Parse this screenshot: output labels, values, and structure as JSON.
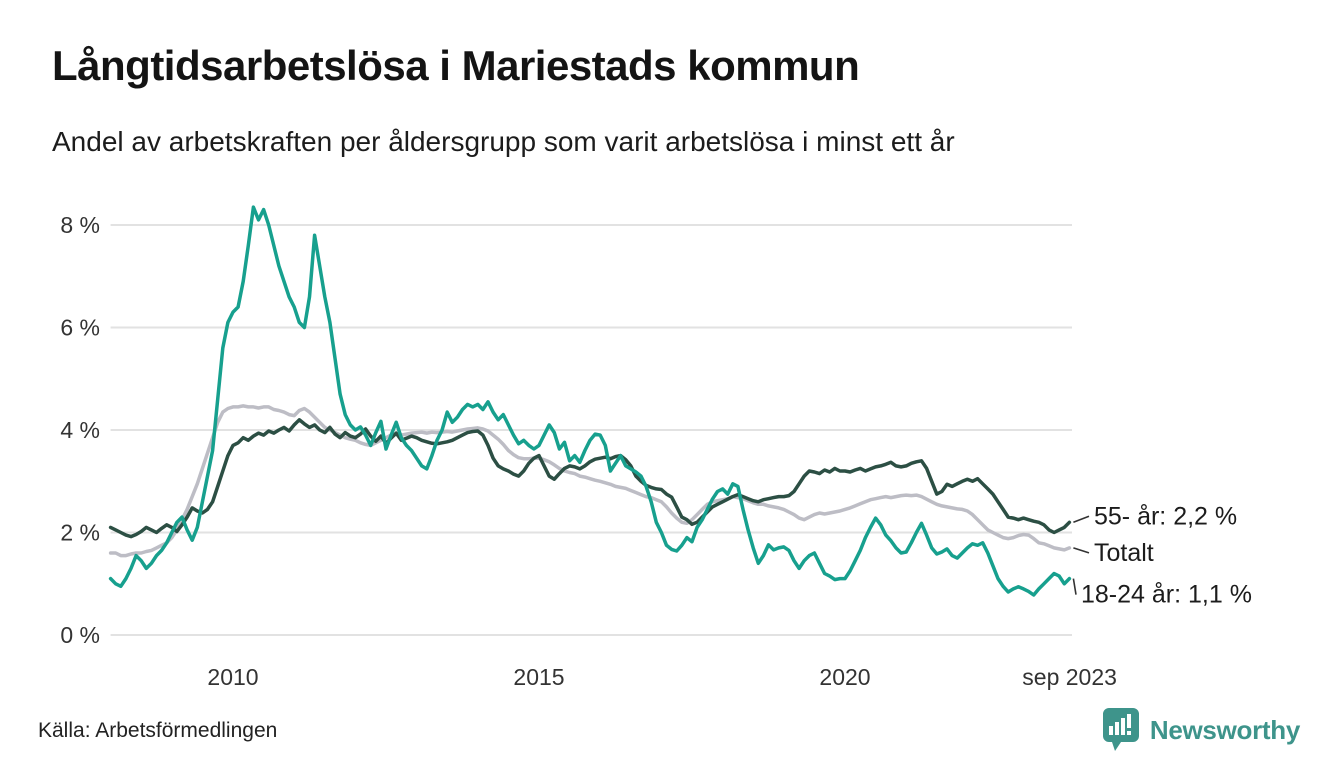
{
  "header": {
    "title": "Långtidsarbetslösa i Mariestads kommun",
    "subtitle": "Andel av arbetskraften per åldersgrupp som varit arbetslösa i minst ett år"
  },
  "footer": {
    "source": "Källa: Arbetsförmedlingen",
    "brand": "Newsworthy"
  },
  "colors": {
    "brand_teal": "#3e948b",
    "grid": "#e2e2e2",
    "axis_text": "#333333",
    "label_text": "#1c1c1c",
    "connector": "#333333"
  },
  "chart_data": {
    "type": "line",
    "title": "Långtidsarbetslösa i Mariestads kommun",
    "subtitle": "Andel av arbetskraften per åldersgrupp som varit arbetslösa i minst ett år",
    "unit": "%",
    "x_start_year": 2008,
    "x_step": "month",
    "x_end_label": "sep 2023",
    "x_range": [
      2008.0,
      2023.75
    ],
    "ylim": [
      0,
      8.6
    ],
    "grid": true,
    "legend_position": "end-of-line-labels",
    "y_ticks": [
      {
        "value": 8,
        "label": "8 %"
      },
      {
        "value": 6,
        "label": "6 %"
      },
      {
        "value": 4,
        "label": "4 %"
      },
      {
        "value": 2,
        "label": "2 %"
      },
      {
        "value": 0,
        "label": "0 %"
      }
    ],
    "x_ticks": [
      {
        "year": 2010.0,
        "label": "2010"
      },
      {
        "year": 2015.0,
        "label": "2015"
      },
      {
        "year": 2020.0,
        "label": "2020"
      },
      {
        "year": 2023.67,
        "label": "sep 2023"
      }
    ],
    "series": [
      {
        "name": "Totalt",
        "color": "#bdbdc5",
        "end_label": "Totalt",
        "end_value": 1.7,
        "label_x": 1094,
        "label_dy": 5,
        "values": [
          1.6,
          1.6,
          1.55,
          1.55,
          1.58,
          1.6,
          1.6,
          1.63,
          1.65,
          1.7,
          1.75,
          1.8,
          1.9,
          2.05,
          2.25,
          2.45,
          2.7,
          2.95,
          3.25,
          3.55,
          3.85,
          4.15,
          4.35,
          4.42,
          4.45,
          4.45,
          4.47,
          4.45,
          4.45,
          4.43,
          4.45,
          4.45,
          4.4,
          4.38,
          4.35,
          4.3,
          4.28,
          4.38,
          4.42,
          4.35,
          4.25,
          4.15,
          4.05,
          4.0,
          3.95,
          3.9,
          3.85,
          3.82,
          3.8,
          3.75,
          3.72,
          3.7,
          3.75,
          3.8,
          3.85,
          3.9,
          3.92,
          3.9,
          3.92,
          3.94,
          3.95,
          3.96,
          3.94,
          3.96,
          3.95,
          3.96,
          3.97,
          3.96,
          3.98,
          4.0,
          4.02,
          4.03,
          4.04,
          4.02,
          3.98,
          3.9,
          3.82,
          3.72,
          3.6,
          3.52,
          3.46,
          3.44,
          3.44,
          3.45,
          3.45,
          3.42,
          3.38,
          3.32,
          3.25,
          3.2,
          3.17,
          3.15,
          3.1,
          3.08,
          3.05,
          3.02,
          3.0,
          2.97,
          2.94,
          2.9,
          2.88,
          2.86,
          2.82,
          2.78,
          2.74,
          2.7,
          2.68,
          2.64,
          2.6,
          2.5,
          2.38,
          2.28,
          2.2,
          2.18,
          2.25,
          2.35,
          2.45,
          2.55,
          2.6,
          2.62,
          2.64,
          2.66,
          2.7,
          2.68,
          2.66,
          2.62,
          2.58,
          2.55,
          2.55,
          2.52,
          2.5,
          2.48,
          2.45,
          2.4,
          2.35,
          2.28,
          2.25,
          2.3,
          2.35,
          2.38,
          2.36,
          2.38,
          2.4,
          2.42,
          2.45,
          2.48,
          2.52,
          2.56,
          2.6,
          2.64,
          2.66,
          2.68,
          2.7,
          2.68,
          2.7,
          2.72,
          2.73,
          2.72,
          2.73,
          2.7,
          2.65,
          2.6,
          2.55,
          2.52,
          2.5,
          2.48,
          2.46,
          2.45,
          2.42,
          2.35,
          2.25,
          2.15,
          2.05,
          2.0,
          1.95,
          1.9,
          1.88,
          1.9,
          1.94,
          1.96,
          1.95,
          1.88,
          1.8,
          1.78,
          1.74,
          1.7,
          1.68,
          1.66,
          1.7
        ]
      },
      {
        "name": "55- år",
        "color": "#2c4f44",
        "end_label": "55- år: 2,2 %",
        "end_value": 2.2,
        "label_x": 1094,
        "label_dy": -6,
        "values": [
          2.1,
          2.05,
          2.0,
          1.95,
          1.92,
          1.96,
          2.02,
          2.1,
          2.05,
          2.0,
          2.08,
          2.15,
          2.1,
          2.02,
          2.15,
          2.3,
          2.48,
          2.42,
          2.38,
          2.45,
          2.6,
          2.9,
          3.2,
          3.5,
          3.7,
          3.75,
          3.85,
          3.8,
          3.88,
          3.94,
          3.9,
          3.98,
          3.94,
          4.0,
          4.05,
          3.98,
          4.1,
          4.2,
          4.12,
          4.05,
          4.1,
          4.0,
          3.95,
          4.05,
          3.92,
          3.85,
          3.95,
          3.88,
          3.85,
          3.92,
          4.02,
          3.88,
          3.78,
          3.88,
          3.74,
          3.84,
          3.94,
          3.8,
          3.84,
          3.88,
          3.85,
          3.8,
          3.77,
          3.74,
          3.73,
          3.75,
          3.77,
          3.8,
          3.85,
          3.9,
          3.95,
          3.97,
          3.98,
          3.9,
          3.7,
          3.45,
          3.3,
          3.24,
          3.2,
          3.14,
          3.1,
          3.2,
          3.35,
          3.45,
          3.5,
          3.3,
          3.1,
          3.04,
          3.15,
          3.25,
          3.3,
          3.28,
          3.24,
          3.3,
          3.38,
          3.43,
          3.45,
          3.47,
          3.44,
          3.48,
          3.5,
          3.42,
          3.3,
          3.1,
          3.0,
          2.92,
          2.88,
          2.85,
          2.84,
          2.75,
          2.69,
          2.5,
          2.3,
          2.25,
          2.16,
          2.2,
          2.3,
          2.4,
          2.5,
          2.55,
          2.6,
          2.65,
          2.7,
          2.74,
          2.7,
          2.66,
          2.62,
          2.6,
          2.64,
          2.66,
          2.68,
          2.7,
          2.7,
          2.72,
          2.8,
          2.95,
          3.1,
          3.2,
          3.18,
          3.15,
          3.22,
          3.18,
          3.25,
          3.2,
          3.2,
          3.18,
          3.22,
          3.25,
          3.2,
          3.24,
          3.28,
          3.3,
          3.33,
          3.37,
          3.3,
          3.28,
          3.3,
          3.35,
          3.38,
          3.4,
          3.25,
          3.0,
          2.75,
          2.8,
          2.94,
          2.9,
          2.95,
          3.0,
          3.04,
          3.0,
          3.05,
          2.95,
          2.85,
          2.75,
          2.6,
          2.45,
          2.3,
          2.28,
          2.25,
          2.28,
          2.25,
          2.22,
          2.2,
          2.15,
          2.05,
          2.0,
          2.05,
          2.1,
          2.2
        ]
      },
      {
        "name": "18-24 år",
        "color": "#17a08e",
        "end_label": "18-24 år: 1,1 %",
        "end_value": 1.1,
        "label_x": 1081,
        "label_dy": 16,
        "values": [
          1.1,
          1.0,
          0.95,
          1.1,
          1.3,
          1.55,
          1.45,
          1.3,
          1.4,
          1.55,
          1.65,
          1.8,
          2.0,
          2.2,
          2.3,
          2.05,
          1.85,
          2.1,
          2.6,
          3.1,
          3.6,
          4.6,
          5.6,
          6.1,
          6.3,
          6.4,
          6.9,
          7.6,
          8.35,
          8.1,
          8.3,
          8.0,
          7.6,
          7.2,
          6.9,
          6.6,
          6.4,
          6.1,
          6.0,
          6.6,
          7.8,
          7.2,
          6.6,
          6.1,
          5.4,
          4.7,
          4.3,
          4.1,
          4.0,
          4.06,
          3.9,
          3.7,
          3.95,
          4.17,
          3.63,
          3.9,
          4.15,
          3.85,
          3.7,
          3.6,
          3.45,
          3.3,
          3.24,
          3.5,
          3.8,
          4.0,
          4.35,
          4.15,
          4.25,
          4.4,
          4.5,
          4.45,
          4.5,
          4.4,
          4.55,
          4.35,
          4.2,
          4.3,
          4.1,
          3.9,
          3.73,
          3.8,
          3.7,
          3.63,
          3.7,
          3.9,
          4.1,
          3.95,
          3.63,
          3.76,
          3.4,
          3.5,
          3.37,
          3.6,
          3.8,
          3.92,
          3.9,
          3.7,
          3.2,
          3.35,
          3.5,
          3.3,
          3.24,
          3.18,
          3.1,
          2.9,
          2.6,
          2.2,
          2.0,
          1.75,
          1.67,
          1.64,
          1.75,
          1.9,
          1.82,
          2.1,
          2.25,
          2.45,
          2.65,
          2.8,
          2.85,
          2.75,
          2.95,
          2.9,
          2.45,
          2.05,
          1.7,
          1.4,
          1.55,
          1.76,
          1.66,
          1.7,
          1.72,
          1.65,
          1.45,
          1.3,
          1.45,
          1.55,
          1.6,
          1.4,
          1.2,
          1.15,
          1.08,
          1.1,
          1.1,
          1.25,
          1.45,
          1.65,
          1.9,
          2.1,
          2.28,
          2.15,
          1.95,
          1.84,
          1.7,
          1.6,
          1.62,
          1.8,
          2.0,
          2.18,
          1.95,
          1.7,
          1.58,
          1.62,
          1.68,
          1.55,
          1.5,
          1.6,
          1.7,
          1.78,
          1.75,
          1.8,
          1.6,
          1.35,
          1.1,
          0.95,
          0.84,
          0.9,
          0.94,
          0.9,
          0.85,
          0.78,
          0.9,
          1.0,
          1.1,
          1.2,
          1.15,
          1.0,
          1.1
        ]
      }
    ]
  }
}
